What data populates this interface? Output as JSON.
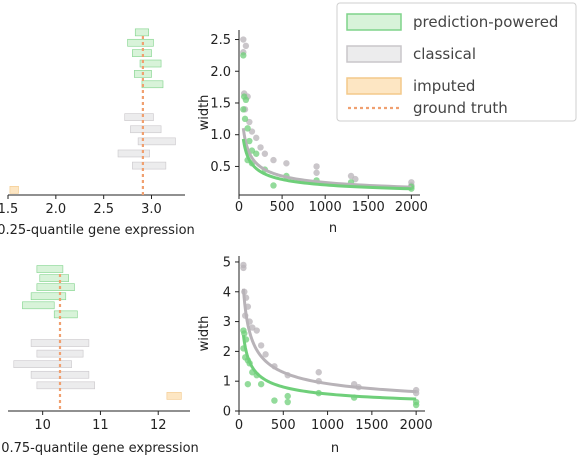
{
  "legend": {
    "items": [
      {
        "label": "prediction-powered",
        "kind": "box",
        "fill": "#d8f3d9",
        "stroke": "#7fd38a"
      },
      {
        "label": "classical",
        "kind": "box",
        "fill": "#ececed",
        "stroke": "#c9c6ca"
      },
      {
        "label": "imputed",
        "kind": "box",
        "fill": "#fde6c3",
        "stroke": "#f3c98a"
      },
      {
        "label": "ground truth",
        "kind": "dash",
        "stroke": "#f0a070"
      }
    ]
  },
  "chart_data": [
    {
      "id": "top-left",
      "type": "interval",
      "xlabel": "0.25-quantile gene expression",
      "ylabel": "",
      "xlim": [
        1.5,
        3.35
      ],
      "xticks": [
        1.5,
        2.0,
        2.5,
        3.0
      ],
      "xtick_labels": [
        "1.5",
        "2.0",
        "2.5",
        "3.0"
      ],
      "ground_truth": 2.91,
      "imputed": [
        {
          "lo": 1.52,
          "hi": 1.61,
          "y": 0.97
        }
      ],
      "prediction_powered": [
        {
          "lo": 2.83,
          "hi": 2.97,
          "y": 0.06
        },
        {
          "lo": 2.75,
          "hi": 3.02,
          "y": 0.12
        },
        {
          "lo": 2.8,
          "hi": 3.0,
          "y": 0.18
        },
        {
          "lo": 2.88,
          "hi": 3.1,
          "y": 0.24
        },
        {
          "lo": 2.82,
          "hi": 3.0,
          "y": 0.3
        },
        {
          "lo": 2.9,
          "hi": 3.12,
          "y": 0.36
        }
      ],
      "classical": [
        {
          "lo": 2.72,
          "hi": 3.02,
          "y": 0.55
        },
        {
          "lo": 2.78,
          "hi": 3.1,
          "y": 0.62
        },
        {
          "lo": 2.86,
          "hi": 3.25,
          "y": 0.69
        },
        {
          "lo": 2.65,
          "hi": 2.98,
          "y": 0.76
        },
        {
          "lo": 2.8,
          "hi": 3.15,
          "y": 0.83
        }
      ]
    },
    {
      "id": "top-right",
      "type": "scatter+line",
      "xlabel": "n",
      "ylabel": "width",
      "xlim": [
        0,
        2100
      ],
      "ylim": [
        0.05,
        2.65
      ],
      "xticks": [
        0,
        500,
        1000,
        1500,
        2000
      ],
      "yticks": [
        0.5,
        1.0,
        1.5,
        2.0,
        2.5
      ],
      "ytick_labels": [
        "0.5",
        "1.0",
        "1.5",
        "2.0",
        "2.5"
      ],
      "series": [
        {
          "role": "classical",
          "color": "#b8b3b8",
          "curve_a": 7.8,
          "points": [
            [
              50,
              2.5
            ],
            [
              50,
              2.3
            ],
            [
              80,
              2.4
            ],
            [
              60,
              1.65
            ],
            [
              100,
              1.6
            ],
            [
              70,
              1.4
            ],
            [
              120,
              1.2
            ],
            [
              150,
              1.05
            ],
            [
              200,
              0.95
            ],
            [
              250,
              0.8
            ],
            [
              300,
              0.7
            ],
            [
              400,
              0.6
            ],
            [
              550,
              0.55
            ],
            [
              900,
              0.5
            ],
            [
              900,
              0.4
            ],
            [
              1300,
              0.35
            ],
            [
              1350,
              0.3
            ],
            [
              2000,
              0.25
            ],
            [
              2000,
              0.2
            ]
          ]
        },
        {
          "role": "prediction-powered",
          "color": "#6fcf7a",
          "curve_a": 6.6,
          "points": [
            [
              50,
              2.25
            ],
            [
              60,
              1.6
            ],
            [
              80,
              1.55
            ],
            [
              50,
              1.4
            ],
            [
              70,
              1.25
            ],
            [
              100,
              1.1
            ],
            [
              120,
              0.9
            ],
            [
              150,
              0.75
            ],
            [
              200,
              0.7
            ],
            [
              100,
              0.6
            ],
            [
              150,
              0.55
            ],
            [
              300,
              0.45
            ],
            [
              400,
              0.2
            ],
            [
              550,
              0.35
            ],
            [
              900,
              0.28
            ],
            [
              1300,
              0.25
            ],
            [
              2000,
              0.18
            ],
            [
              2000,
              0.15
            ]
          ]
        }
      ]
    },
    {
      "id": "bottom-left",
      "type": "interval",
      "xlabel": "0.75-quantile gene expression",
      "ylabel": "",
      "xlim": [
        9.4,
        12.55
      ],
      "xticks": [
        10,
        11,
        12
      ],
      "xtick_labels": [
        "10",
        "11",
        "12"
      ],
      "ground_truth": 10.3,
      "imputed": [
        {
          "lo": 12.15,
          "hi": 12.4,
          "y": 0.9
        }
      ],
      "prediction_powered": [
        {
          "lo": 9.9,
          "hi": 10.35,
          "y": 0.06
        },
        {
          "lo": 9.95,
          "hi": 10.45,
          "y": 0.12
        },
        {
          "lo": 9.9,
          "hi": 10.55,
          "y": 0.18
        },
        {
          "lo": 9.8,
          "hi": 10.4,
          "y": 0.24
        },
        {
          "lo": 9.65,
          "hi": 10.2,
          "y": 0.3
        },
        {
          "lo": 10.2,
          "hi": 10.6,
          "y": 0.36
        }
      ],
      "classical": [
        {
          "lo": 9.8,
          "hi": 10.8,
          "y": 0.55
        },
        {
          "lo": 9.9,
          "hi": 10.7,
          "y": 0.62
        },
        {
          "lo": 9.5,
          "hi": 10.5,
          "y": 0.69
        },
        {
          "lo": 9.8,
          "hi": 10.8,
          "y": 0.76
        },
        {
          "lo": 9.9,
          "hi": 10.9,
          "y": 0.83
        }
      ]
    },
    {
      "id": "bottom-right",
      "type": "scatter+line",
      "xlabel": "n",
      "ylabel": "width",
      "xlim": [
        0,
        2100
      ],
      "ylim": [
        0,
        5.2
      ],
      "xticks": [
        0,
        500,
        1000,
        1500,
        2000
      ],
      "yticks": [
        0,
        1,
        2,
        3,
        4,
        5
      ],
      "ytick_labels": [
        "0",
        "1",
        "2",
        "3",
        "4",
        "5"
      ],
      "series": [
        {
          "role": "classical",
          "color": "#b8b3b8",
          "curve_a": 29,
          "points": [
            [
              50,
              4.9
            ],
            [
              50,
              4.8
            ],
            [
              60,
              4.0
            ],
            [
              80,
              3.8
            ],
            [
              100,
              3.5
            ],
            [
              70,
              3.2
            ],
            [
              120,
              3.0
            ],
            [
              150,
              2.8
            ],
            [
              200,
              2.7
            ],
            [
              250,
              2.2
            ],
            [
              300,
              1.9
            ],
            [
              400,
              1.5
            ],
            [
              550,
              1.2
            ],
            [
              900,
              1.3
            ],
            [
              900,
              1.0
            ],
            [
              1300,
              0.9
            ],
            [
              1350,
              0.8
            ],
            [
              2000,
              0.7
            ],
            [
              2000,
              0.6
            ]
          ]
        },
        {
          "role": "prediction-powered",
          "color": "#6fcf7a",
          "curve_a": 18,
          "points": [
            [
              50,
              2.7
            ],
            [
              60,
              2.6
            ],
            [
              80,
              2.4
            ],
            [
              50,
              2.1
            ],
            [
              70,
              1.8
            ],
            [
              100,
              1.7
            ],
            [
              120,
              1.6
            ],
            [
              150,
              1.3
            ],
            [
              200,
              1.2
            ],
            [
              100,
              0.9
            ],
            [
              250,
              0.9
            ],
            [
              400,
              0.35
            ],
            [
              550,
              0.5
            ],
            [
              550,
              0.3
            ],
            [
              900,
              0.6
            ],
            [
              1300,
              0.45
            ],
            [
              2000,
              0.3
            ],
            [
              2000,
              0.2
            ]
          ]
        }
      ]
    }
  ]
}
